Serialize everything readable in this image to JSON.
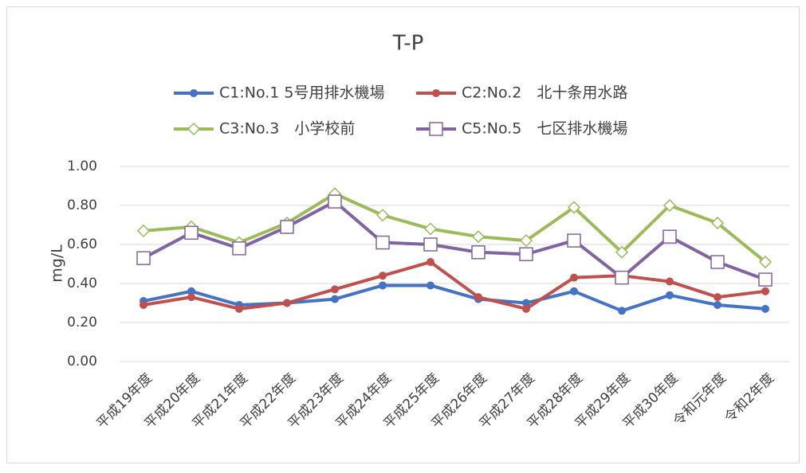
{
  "chart_data": {
    "type": "line",
    "title": "T-P",
    "y_label": "mg/L",
    "categories": [
      "平成19年度",
      "平成20年度",
      "平成21年度",
      "平成22年度",
      "平成23年度",
      "平成24年度",
      "平成25年度",
      "平成26年度",
      "平成27年度",
      "平成28年度",
      "平成29年度",
      "平成30年度",
      "令和元年度",
      "令和2年度"
    ],
    "series": [
      {
        "name": "C1:No.1 5号用排水機場",
        "color": "#4472c4",
        "marker": "circle",
        "values": [
          0.31,
          0.36,
          0.29,
          0.3,
          0.32,
          0.39,
          0.39,
          0.32,
          0.3,
          0.36,
          0.26,
          0.34,
          0.29,
          0.27
        ]
      },
      {
        "name": "C2:No.2　北十条用水路",
        "color": "#c0504d",
        "marker": "circle",
        "values": [
          0.29,
          0.33,
          0.27,
          0.3,
          0.37,
          0.44,
          0.51,
          0.33,
          0.27,
          0.43,
          0.44,
          0.41,
          0.33,
          0.36
        ]
      },
      {
        "name": "C3:No.3　小学校前",
        "color": "#9bbb59",
        "marker": "diamond",
        "values": [
          0.67,
          0.69,
          0.61,
          0.71,
          0.86,
          0.75,
          0.68,
          0.64,
          0.62,
          0.79,
          0.56,
          0.8,
          0.71,
          0.51
        ]
      },
      {
        "name": "C5:No.5　七区排水機場",
        "color": "#8064a2",
        "marker": "square",
        "values": [
          0.53,
          0.66,
          0.58,
          0.69,
          0.82,
          0.61,
          0.6,
          0.56,
          0.55,
          0.62,
          0.43,
          0.64,
          0.51,
          0.42
        ]
      }
    ],
    "ylim": [
      0,
      1
    ],
    "yticks": [
      {
        "value": 0,
        "label": "0.00"
      },
      {
        "value": 0.2,
        "label": "0.20"
      },
      {
        "value": 0.4,
        "label": "0.40"
      },
      {
        "value": 0.6,
        "label": "0.60"
      },
      {
        "value": 0.8,
        "label": "0.80"
      },
      {
        "value": 1,
        "label": "1.00"
      }
    ],
    "grid": true
  }
}
